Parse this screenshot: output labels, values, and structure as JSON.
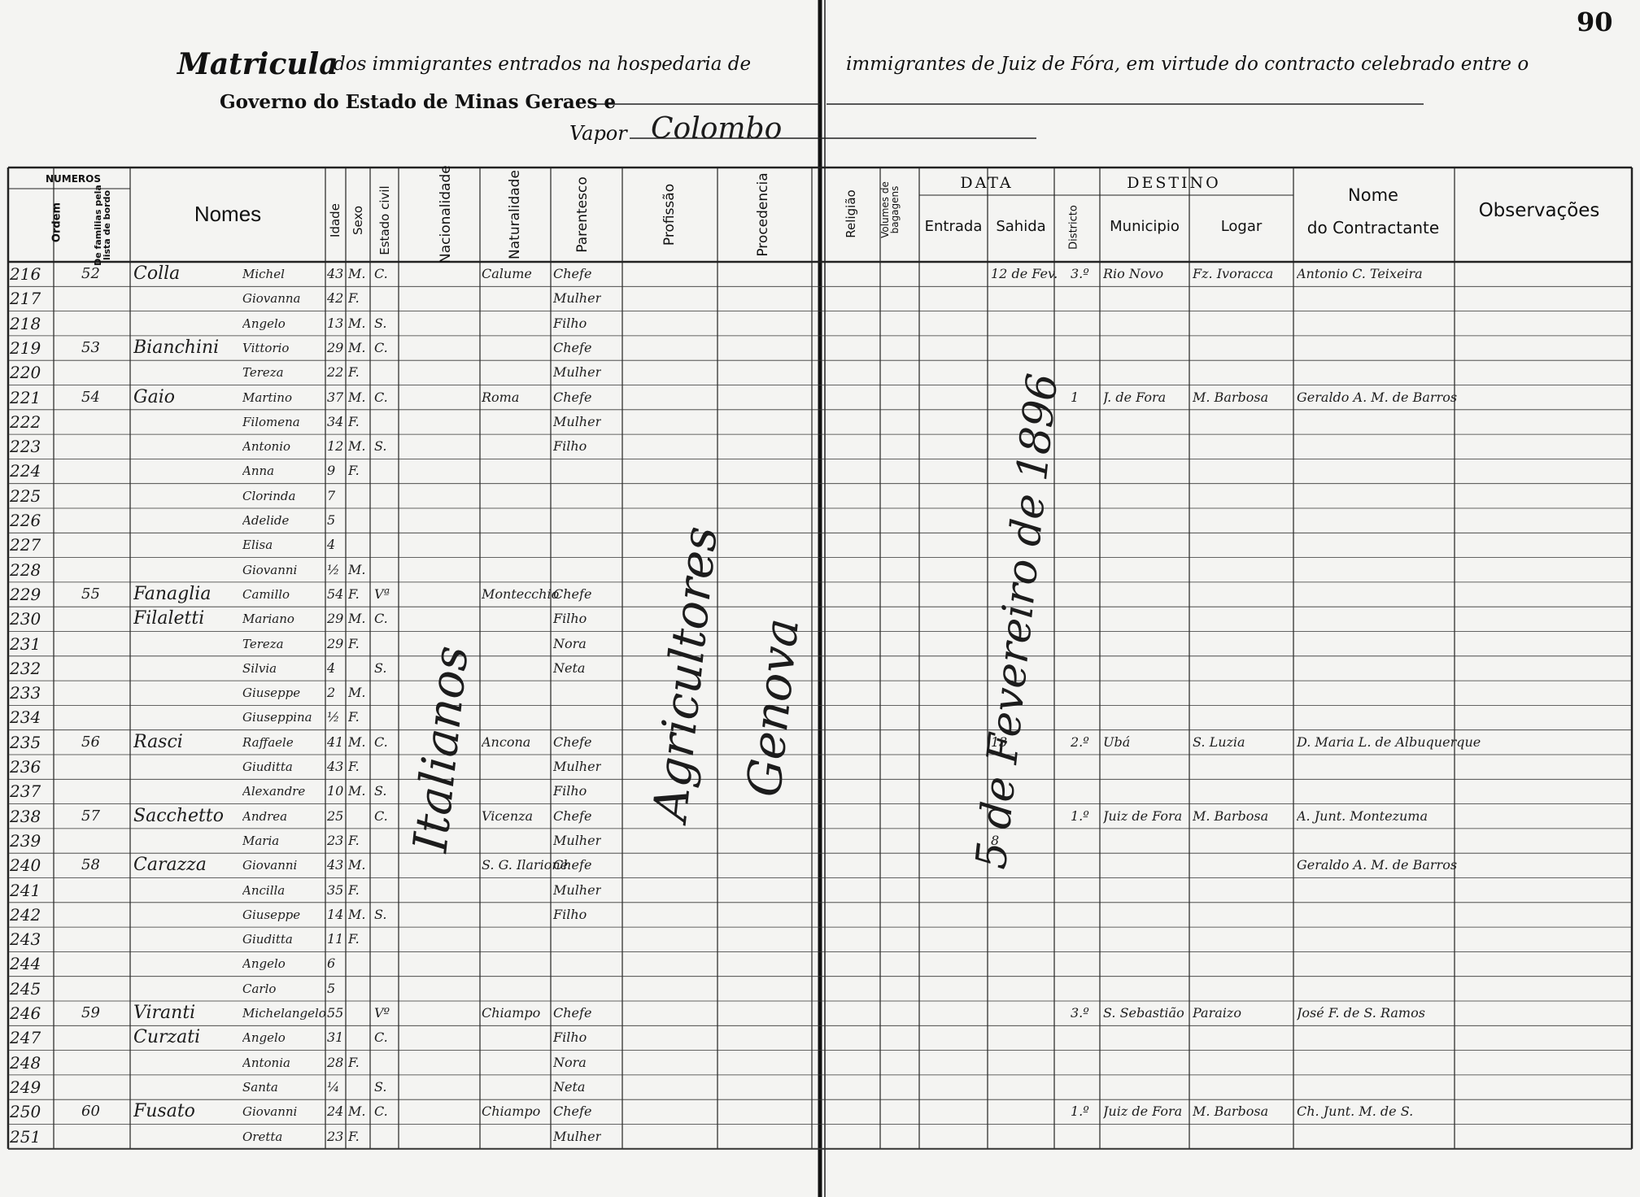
{
  "page_number": "90",
  "title": {
    "word1": "Matricula",
    "part1": "dos immigrantes entrados na hospedaria de",
    "part2": "immigrantes de Juiz de Fóra, em virtude do contracto celebrado entre o",
    "line2": "Governo do Estado de Minas Geraes e",
    "vapor_label": "Vapor",
    "vapor_name": "Colombo"
  },
  "headers": {
    "numeros": "NUMEROS",
    "ordem": "Ordem",
    "familias": "De familias pela lista de bordo",
    "nomes": "Nomes",
    "idade": "Idade",
    "sexo": "Sexo",
    "estado_civil": "Estado civil",
    "nacionalidade": "Nacionalidade",
    "naturalidade": "Naturalidade",
    "parentesco": "Parentesco",
    "profissao": "Profissão",
    "procedencia": "Procedencia",
    "religiao": "Religião",
    "volumes": "Volumes de bagagens",
    "data": "DATA",
    "entrada": "Entrada",
    "sahida": "Sahida",
    "destino": "DESTINO",
    "districto": "Districto",
    "municipio": "Municipio",
    "logar": "Logar",
    "nome": "Nome",
    "do_contractante": "do Contractante",
    "observacoes": "Observações"
  },
  "vertical_entries": {
    "nacionalidade": "Italianos",
    "profissao": "Agricultores",
    "procedencia": "Genova",
    "entrada": "5 de Fevereiro de 1896"
  },
  "rows": [
    {
      "ordem": "216",
      "fam": "52",
      "surname": "Colla",
      "given": "Michel",
      "idade": "43",
      "sexo": "M.",
      "civil": "C.",
      "natural": "Calume",
      "parent": "Chefe",
      "sahida": "12 de Fev.",
      "distr": "3.º",
      "munic": "Rio Novo",
      "logar": "Fz. Ivoracca",
      "contr": "Antonio C. Teixeira"
    },
    {
      "ordem": "217",
      "fam": "",
      "surname": "",
      "given": "Giovanna",
      "idade": "42",
      "sexo": "F.",
      "civil": "",
      "natural": "",
      "parent": "Mulher",
      "sahida": "",
      "distr": "",
      "munic": "",
      "logar": "",
      "contr": ""
    },
    {
      "ordem": "218",
      "fam": "",
      "surname": "",
      "given": "Angelo",
      "idade": "13",
      "sexo": "M.",
      "civil": "S.",
      "natural": "",
      "parent": "Filho",
      "sahida": "",
      "distr": "",
      "munic": "",
      "logar": "",
      "contr": ""
    },
    {
      "ordem": "219",
      "fam": "53",
      "surname": "Bianchini",
      "given": "Vittorio",
      "idade": "29",
      "sexo": "M.",
      "civil": "C.",
      "natural": "",
      "parent": "Chefe",
      "sahida": "",
      "distr": "",
      "munic": "",
      "logar": "",
      "contr": ""
    },
    {
      "ordem": "220",
      "fam": "",
      "surname": "",
      "given": "Tereza",
      "idade": "22",
      "sexo": "F.",
      "civil": "",
      "natural": "",
      "parent": "Mulher",
      "sahida": "",
      "distr": "",
      "munic": "",
      "logar": "",
      "contr": ""
    },
    {
      "ordem": "221",
      "fam": "54",
      "surname": "Gaio",
      "given": "Martino",
      "idade": "37",
      "sexo": "M.",
      "civil": "C.",
      "natural": "Roma",
      "parent": "Chefe",
      "sahida": "",
      "distr": "1",
      "munic": "J. de Fora",
      "logar": "M. Barbosa",
      "contr": "Geraldo A. M. de Barros"
    },
    {
      "ordem": "222",
      "fam": "",
      "surname": "",
      "given": "Filomena",
      "idade": "34",
      "sexo": "F.",
      "civil": "",
      "natural": "",
      "parent": "Mulher",
      "sahida": "",
      "distr": "",
      "munic": "",
      "logar": "",
      "contr": ""
    },
    {
      "ordem": "223",
      "fam": "",
      "surname": "",
      "given": "Antonio",
      "idade": "12",
      "sexo": "M.",
      "civil": "S.",
      "natural": "",
      "parent": "Filho",
      "sahida": "",
      "distr": "",
      "munic": "",
      "logar": "",
      "contr": ""
    },
    {
      "ordem": "224",
      "fam": "",
      "surname": "",
      "given": "Anna",
      "idade": "9",
      "sexo": "F.",
      "civil": "",
      "natural": "",
      "parent": "",
      "sahida": "",
      "distr": "",
      "munic": "",
      "logar": "",
      "contr": ""
    },
    {
      "ordem": "225",
      "fam": "",
      "surname": "",
      "given": "Clorinda",
      "idade": "7",
      "sexo": "",
      "civil": "",
      "natural": "",
      "parent": "",
      "sahida": "",
      "distr": "",
      "munic": "",
      "logar": "",
      "contr": ""
    },
    {
      "ordem": "226",
      "fam": "",
      "surname": "",
      "given": "Adelide",
      "idade": "5",
      "sexo": "",
      "civil": "",
      "natural": "",
      "parent": "",
      "sahida": "",
      "distr": "",
      "munic": "",
      "logar": "",
      "contr": ""
    },
    {
      "ordem": "227",
      "fam": "",
      "surname": "",
      "given": "Elisa",
      "idade": "4",
      "sexo": "",
      "civil": "",
      "natural": "",
      "parent": "",
      "sahida": "",
      "distr": "",
      "munic": "",
      "logar": "",
      "contr": ""
    },
    {
      "ordem": "228",
      "fam": "",
      "surname": "",
      "given": "Giovanni",
      "idade": "½",
      "sexo": "M.",
      "civil": "",
      "natural": "",
      "parent": "",
      "sahida": "",
      "distr": "",
      "munic": "",
      "logar": "",
      "contr": ""
    },
    {
      "ordem": "229",
      "fam": "55",
      "surname": "Fanaglia",
      "given": "Camillo",
      "idade": "54",
      "sexo": "F.",
      "civil": "Vª",
      "natural": "Montecchio",
      "parent": "Chefe",
      "sahida": "",
      "distr": "",
      "munic": "",
      "logar": "",
      "contr": ""
    },
    {
      "ordem": "230",
      "fam": "",
      "surname": "Filaletti",
      "given": "Mariano",
      "idade": "29",
      "sexo": "M.",
      "civil": "C.",
      "natural": "",
      "parent": "Filho",
      "sahida": "",
      "distr": "",
      "munic": "",
      "logar": "",
      "contr": ""
    },
    {
      "ordem": "231",
      "fam": "",
      "surname": "",
      "given": "Tereza",
      "idade": "29",
      "sexo": "F.",
      "civil": "",
      "natural": "",
      "parent": "Nora",
      "sahida": "",
      "distr": "",
      "munic": "",
      "logar": "",
      "contr": ""
    },
    {
      "ordem": "232",
      "fam": "",
      "surname": "",
      "given": "Silvia",
      "idade": "4",
      "sexo": "",
      "civil": "S.",
      "natural": "",
      "parent": "Neta",
      "sahida": "",
      "distr": "",
      "munic": "",
      "logar": "",
      "contr": ""
    },
    {
      "ordem": "233",
      "fam": "",
      "surname": "",
      "given": "Giuseppe",
      "idade": "2",
      "sexo": "M.",
      "civil": "",
      "natural": "",
      "parent": "",
      "sahida": "",
      "distr": "",
      "munic": "",
      "logar": "",
      "contr": ""
    },
    {
      "ordem": "234",
      "fam": "",
      "surname": "",
      "given": "Giuseppina",
      "idade": "½",
      "sexo": "F.",
      "civil": "",
      "natural": "",
      "parent": "",
      "sahida": "",
      "distr": "",
      "munic": "",
      "logar": "",
      "contr": ""
    },
    {
      "ordem": "235",
      "fam": "56",
      "surname": "Rasci",
      "given": "Raffaele",
      "idade": "41",
      "sexo": "M.",
      "civil": "C.",
      "natural": "Ancona",
      "parent": "Chefe",
      "sahida": "13",
      "distr": "2.º",
      "munic": "Ubá",
      "logar": "S. Luzia",
      "contr": "D. Maria L. de Albuquerque"
    },
    {
      "ordem": "236",
      "fam": "",
      "surname": "",
      "given": "Giuditta",
      "idade": "43",
      "sexo": "F.",
      "civil": "",
      "natural": "",
      "parent": "Mulher",
      "sahida": "",
      "distr": "",
      "munic": "",
      "logar": "",
      "contr": ""
    },
    {
      "ordem": "237",
      "fam": "",
      "surname": "",
      "given": "Alexandre",
      "idade": "10",
      "sexo": "M.",
      "civil": "S.",
      "natural": "",
      "parent": "Filho",
      "sahida": "",
      "distr": "",
      "munic": "",
      "logar": "",
      "contr": ""
    },
    {
      "ordem": "238",
      "fam": "57",
      "surname": "Sacchetto",
      "given": "Andrea",
      "idade": "25",
      "sexo": "",
      "civil": "C.",
      "natural": "Vicenza",
      "parent": "Chefe",
      "sahida": "",
      "distr": "1.º",
      "munic": "Juiz de Fora",
      "logar": "M. Barbosa",
      "contr": "A. Junt. Montezuma"
    },
    {
      "ordem": "239",
      "fam": "",
      "surname": "",
      "given": "Maria",
      "idade": "23",
      "sexo": "F.",
      "civil": "",
      "natural": "",
      "parent": "Mulher",
      "sahida": "8",
      "distr": "",
      "munic": "",
      "logar": "",
      "contr": ""
    },
    {
      "ordem": "240",
      "fam": "58",
      "surname": "Carazza",
      "given": "Giovanni",
      "idade": "43",
      "sexo": "M.",
      "civil": "",
      "natural": "S. G. Ilarione",
      "parent": "Chefe",
      "sahida": "",
      "distr": "",
      "munic": "",
      "logar": "",
      "contr": "Geraldo A. M. de Barros"
    },
    {
      "ordem": "241",
      "fam": "",
      "surname": "",
      "given": "Ancilla",
      "idade": "35",
      "sexo": "F.",
      "civil": "",
      "natural": "",
      "parent": "Mulher",
      "sahida": "",
      "distr": "",
      "munic": "",
      "logar": "",
      "contr": ""
    },
    {
      "ordem": "242",
      "fam": "",
      "surname": "",
      "given": "Giuseppe",
      "idade": "14",
      "sexo": "M.",
      "civil": "S.",
      "natural": "",
      "parent": "Filho",
      "sahida": "",
      "distr": "",
      "munic": "",
      "logar": "",
      "contr": ""
    },
    {
      "ordem": "243",
      "fam": "",
      "surname": "",
      "given": "Giuditta",
      "idade": "11",
      "sexo": "F.",
      "civil": "",
      "natural": "",
      "parent": "",
      "sahida": "",
      "distr": "",
      "munic": "",
      "logar": "",
      "contr": ""
    },
    {
      "ordem": "244",
      "fam": "",
      "surname": "",
      "given": "Angelo",
      "idade": "6",
      "sexo": "",
      "civil": "",
      "natural": "",
      "parent": "",
      "sahida": "",
      "distr": "",
      "munic": "",
      "logar": "",
      "contr": ""
    },
    {
      "ordem": "245",
      "fam": "",
      "surname": "",
      "given": "Carlo",
      "idade": "5",
      "sexo": "",
      "civil": "",
      "natural": "",
      "parent": "",
      "sahida": "",
      "distr": "",
      "munic": "",
      "logar": "",
      "contr": ""
    },
    {
      "ordem": "246",
      "fam": "59",
      "surname": "Viranti",
      "given": "Michelangelo",
      "idade": "55",
      "sexo": "",
      "civil": "Vº",
      "natural": "Chiampo",
      "parent": "Chefe",
      "sahida": "",
      "distr": "3.º",
      "munic": "S. Sebastião",
      "logar": "Paraizo",
      "contr": "José F. de S. Ramos"
    },
    {
      "ordem": "247",
      "fam": "",
      "surname": "Curzati",
      "given": "Angelo",
      "idade": "31",
      "sexo": "",
      "civil": "C.",
      "natural": "",
      "parent": "Filho",
      "sahida": "",
      "distr": "",
      "munic": "",
      "logar": "",
      "contr": ""
    },
    {
      "ordem": "248",
      "fam": "",
      "surname": "",
      "given": "Antonia",
      "idade": "28",
      "sexo": "F.",
      "civil": "",
      "natural": "",
      "parent": "Nora",
      "sahida": "",
      "distr": "",
      "munic": "",
      "logar": "",
      "contr": ""
    },
    {
      "ordem": "249",
      "fam": "",
      "surname": "",
      "given": "Santa",
      "idade": "¼",
      "sexo": "",
      "civil": "S.",
      "natural": "",
      "parent": "Neta",
      "sahida": "",
      "distr": "",
      "munic": "",
      "logar": "",
      "contr": ""
    },
    {
      "ordem": "250",
      "fam": "60",
      "surname": "Fusato",
      "given": "Giovanni",
      "idade": "24",
      "sexo": "M.",
      "civil": "C.",
      "natural": "Chiampo",
      "parent": "Chefe",
      "sahida": "",
      "distr": "1.º",
      "munic": "Juiz de Fora",
      "logar": "M. Barbosa",
      "contr": "Ch. Junt. M. de S."
    },
    {
      "ordem": "251",
      "fam": "",
      "surname": "",
      "given": "Oretta",
      "idade": "23",
      "sexo": "F.",
      "civil": "",
      "natural": "",
      "parent": "Mulher",
      "sahida": "",
      "distr": "",
      "munic": "",
      "logar": "",
      "contr": ""
    }
  ]
}
